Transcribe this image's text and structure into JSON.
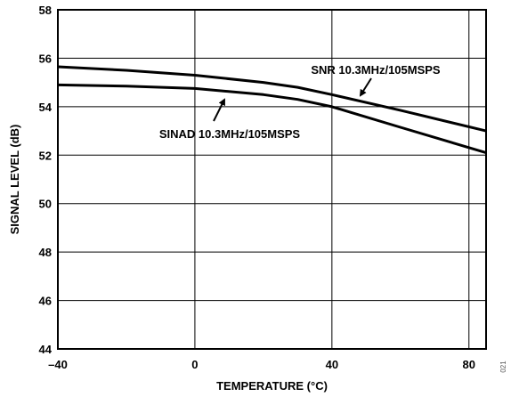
{
  "chart_data": {
    "type": "line",
    "xlabel": "TEMPERATURE (°C)",
    "ylabel": "SIGNAL LEVEL (dB)",
    "xlim": [
      -40,
      85
    ],
    "ylim": [
      44,
      58
    ],
    "xticks": [
      -40,
      0,
      40,
      80
    ],
    "xtick_labels": [
      "–40",
      "0",
      "40",
      "80"
    ],
    "yticks": [
      44,
      46,
      48,
      50,
      52,
      54,
      56,
      58
    ],
    "grid": true,
    "series": [
      {
        "name": "SNR 10.3MHz/105MSPS",
        "x": [
          -40,
          -20,
          0,
          20,
          30,
          40,
          60,
          85
        ],
        "y": [
          55.65,
          55.5,
          55.3,
          55.0,
          54.8,
          54.5,
          53.85,
          53.0
        ]
      },
      {
        "name": "SINAD 10.3MHz/105MSPS",
        "x": [
          -40,
          -20,
          0,
          20,
          30,
          40,
          60,
          85
        ],
        "y": [
          54.9,
          54.85,
          54.75,
          54.5,
          54.3,
          54.0,
          53.15,
          52.1
        ]
      }
    ],
    "annotations": [
      {
        "text": "SNR 10.3MHz/105MSPS",
        "series": 0
      },
      {
        "text": "SINAD 10.3MHz/105MSPS",
        "series": 1
      }
    ]
  },
  "corner_code": "021"
}
